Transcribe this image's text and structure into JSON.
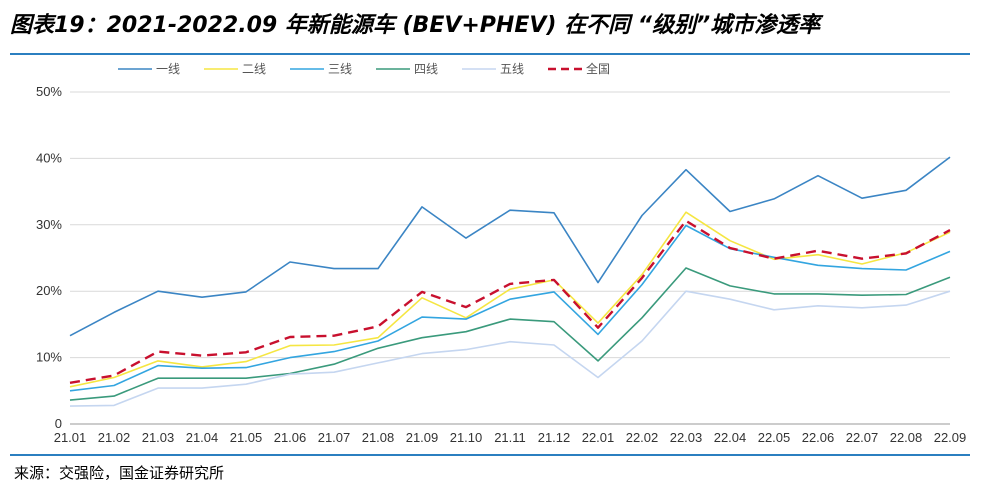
{
  "header": {
    "title": "图表19：2021-2022.09 年新能源车 (BEV+PHEV) 在不同 “级别”城市渗透率"
  },
  "footer": {
    "source": "来源：交强险，国金证券研究所"
  },
  "colors": {
    "rule": "#2b7fc0"
  },
  "chart_data": {
    "type": "line",
    "title": "",
    "xlabel": "",
    "ylabel": "",
    "ylim": [
      0,
      50
    ],
    "yticks": [
      0,
      10,
      20,
      30,
      40,
      50
    ],
    "ytick_labels": [
      "0",
      "10%",
      "20%",
      "30%",
      "40%",
      "50%"
    ],
    "grid": "horizontal",
    "legend_position": "top",
    "categories": [
      "21.01",
      "21.02",
      "21.03",
      "21.04",
      "21.05",
      "21.06",
      "21.07",
      "21.08",
      "21.09",
      "21.10",
      "21.11",
      "21.12",
      "22.01",
      "22.02",
      "22.03",
      "22.04",
      "22.05",
      "22.06",
      "22.07",
      "22.08",
      "22.09"
    ],
    "series": [
      {
        "name": "一线",
        "color": "#3b85c4",
        "dash": false,
        "values": [
          13.3,
          16.8,
          20.0,
          19.1,
          19.9,
          24.4,
          23.4,
          23.4,
          32.7,
          28.0,
          32.2,
          31.8,
          21.3,
          31.4,
          38.3,
          32.0,
          33.9,
          37.4,
          34.0,
          35.2,
          40.2
        ]
      },
      {
        "name": "二线",
        "color": "#f5e642",
        "dash": false,
        "values": [
          5.6,
          7.0,
          9.5,
          8.6,
          9.4,
          11.8,
          11.9,
          13.0,
          19.0,
          16.0,
          20.3,
          21.7,
          15.2,
          22.5,
          31.9,
          27.6,
          24.8,
          25.5,
          24.1,
          25.8,
          28.9
        ]
      },
      {
        "name": "三线",
        "color": "#33a5e0",
        "dash": false,
        "values": [
          5.0,
          5.8,
          8.8,
          8.4,
          8.5,
          10.0,
          10.9,
          12.5,
          16.1,
          15.8,
          18.8,
          19.9,
          13.5,
          21.0,
          29.9,
          26.4,
          25.1,
          23.9,
          23.4,
          23.2,
          26.0
        ]
      },
      {
        "name": "四线",
        "color": "#3a9a7c",
        "dash": false,
        "values": [
          3.6,
          4.2,
          6.9,
          6.9,
          6.9,
          7.6,
          9.0,
          11.4,
          13.0,
          13.9,
          15.8,
          15.4,
          9.5,
          16.0,
          23.5,
          20.8,
          19.6,
          19.6,
          19.4,
          19.5,
          22.1
        ]
      },
      {
        "name": "五线",
        "color": "#c5d6f0",
        "dash": false,
        "values": [
          2.7,
          2.8,
          5.4,
          5.4,
          6.0,
          7.5,
          7.8,
          9.2,
          10.6,
          11.2,
          12.4,
          11.9,
          7.0,
          12.5,
          20.0,
          18.8,
          17.2,
          17.8,
          17.5,
          17.9,
          20.0
        ]
      },
      {
        "name": "全国",
        "color": "#c8102e",
        "dash": true,
        "values": [
          6.2,
          7.3,
          10.9,
          10.3,
          10.8,
          13.1,
          13.3,
          14.7,
          19.9,
          17.6,
          21.1,
          21.7,
          14.5,
          22.0,
          30.6,
          26.5,
          24.9,
          26.1,
          24.9,
          25.7,
          29.2
        ]
      }
    ]
  }
}
